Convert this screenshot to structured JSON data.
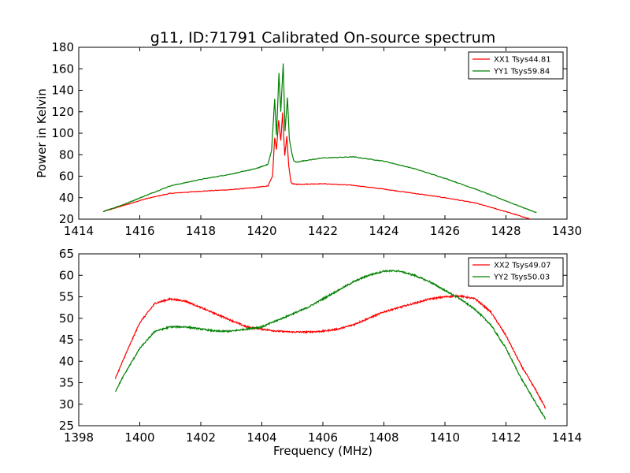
{
  "title": "g11, ID:71791 Calibrated On-source spectrum",
  "chart_data": [
    {
      "type": "line",
      "ylabel": "Power in Kelvin",
      "xlabel": "",
      "xlim": [
        1414,
        1430
      ],
      "ylim": [
        20,
        180
      ],
      "xticks": [
        "1414",
        "1416",
        "1418",
        "1420",
        "1422",
        "1424",
        "1426",
        "1428",
        "1430"
      ],
      "yticks": [
        "20",
        "40",
        "60",
        "80",
        "100",
        "120",
        "140",
        "160",
        "180"
      ],
      "legend_position": "top-right",
      "grid": false,
      "series": [
        {
          "name": "XX1 Tsys44.81",
          "color": "#ff0000",
          "x": [
            1414.8,
            1415.5,
            1416.2,
            1417.0,
            1418.0,
            1419.0,
            1419.8,
            1420.2,
            1420.35,
            1420.42,
            1420.48,
            1420.55,
            1420.62,
            1420.68,
            1420.75,
            1420.82,
            1420.88,
            1420.95,
            1421.0,
            1421.1,
            1421.3,
            1422.0,
            1423.0,
            1424.0,
            1425.0,
            1426.0,
            1427.0,
            1428.0,
            1428.8
          ],
          "y": [
            27,
            33,
            39,
            44,
            46,
            47.5,
            49.5,
            51,
            60,
            96,
            85,
            112,
            93,
            119,
            79,
            97,
            70,
            55,
            53,
            52.5,
            52.5,
            53,
            51.5,
            48,
            44,
            40,
            35,
            27,
            20
          ]
        },
        {
          "name": "YY1 Tsys59.84",
          "color": "#008000",
          "x": [
            1414.8,
            1415.5,
            1416.2,
            1417.0,
            1418.0,
            1419.0,
            1419.8,
            1420.2,
            1420.32,
            1420.42,
            1420.48,
            1420.56,
            1420.62,
            1420.7,
            1420.76,
            1420.84,
            1420.9,
            1420.98,
            1421.05,
            1421.15,
            1421.3,
            1422.0,
            1423.0,
            1424.0,
            1425.0,
            1426.0,
            1427.0,
            1428.0,
            1429.0
          ],
          "y": [
            27,
            34,
            42,
            51,
            57,
            62,
            67,
            71,
            84,
            132,
            98,
            156,
            120,
            165,
            102,
            133,
            95,
            82,
            74,
            73,
            74,
            77,
            78,
            74,
            67,
            58,
            48,
            37,
            26
          ]
        }
      ]
    },
    {
      "type": "line",
      "xlabel": "Frequency (MHz)",
      "ylabel": "",
      "xlim": [
        1398,
        1414
      ],
      "ylim": [
        25,
        65
      ],
      "xticks": [
        "1398",
        "1400",
        "1402",
        "1404",
        "1406",
        "1408",
        "1410",
        "1412",
        "1414"
      ],
      "yticks": [
        "25",
        "30",
        "35",
        "40",
        "45",
        "50",
        "55",
        "60",
        "65"
      ],
      "legend_position": "top-right",
      "grid": false,
      "series": [
        {
          "name": "XX2 Tsys49.07",
          "color": "#ff0000",
          "x": [
            1399.2,
            1399.5,
            1400.0,
            1400.5,
            1401.0,
            1401.5,
            1402.0,
            1402.5,
            1403.0,
            1403.5,
            1404.0,
            1404.5,
            1405.0,
            1405.5,
            1406.0,
            1406.5,
            1407.0,
            1407.5,
            1408.0,
            1408.5,
            1409.0,
            1409.5,
            1410.0,
            1410.5,
            1411.0,
            1411.5,
            1412.0,
            1412.5,
            1413.0,
            1413.3
          ],
          "y": [
            36,
            41,
            49,
            53.5,
            54.5,
            54,
            52.5,
            51,
            49.5,
            48,
            47.5,
            47,
            46.8,
            46.8,
            47,
            47.5,
            48.5,
            50,
            51.5,
            52.5,
            53.5,
            54.5,
            55,
            55.2,
            54.5,
            51.5,
            46,
            39,
            33,
            29
          ]
        },
        {
          "name": "YY2 Tsys50.03",
          "color": "#008000",
          "x": [
            1399.2,
            1399.5,
            1400.0,
            1400.5,
            1401.0,
            1401.5,
            1402.0,
            1402.5,
            1403.0,
            1403.5,
            1404.0,
            1404.5,
            1405.0,
            1405.5,
            1406.0,
            1406.5,
            1407.0,
            1407.5,
            1408.0,
            1408.5,
            1409.0,
            1409.5,
            1410.0,
            1410.5,
            1411.0,
            1411.5,
            1412.0,
            1412.5,
            1413.0,
            1413.3
          ],
          "y": [
            33,
            37,
            43,
            47,
            48,
            48,
            47.5,
            47,
            47,
            47.5,
            48,
            49.5,
            51,
            52.5,
            54.5,
            56.5,
            58.5,
            60,
            61,
            61,
            60,
            58.5,
            56.5,
            54.5,
            52,
            48.5,
            43,
            36,
            30,
            26.5
          ]
        }
      ]
    }
  ]
}
